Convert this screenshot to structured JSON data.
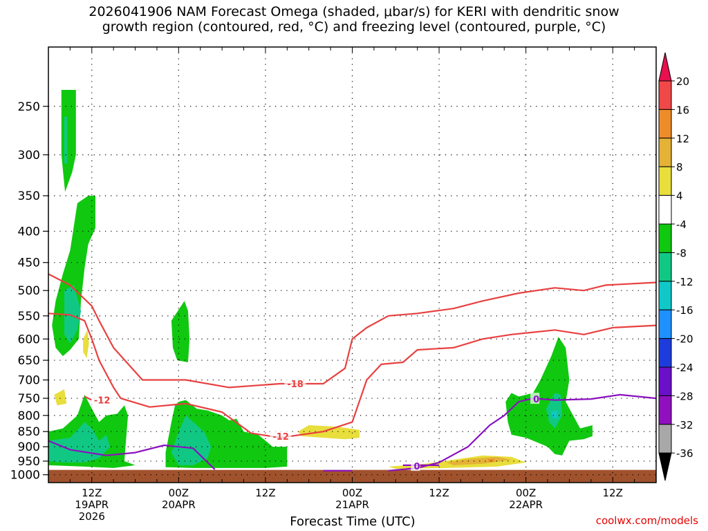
{
  "title_line1": "2026041906 NAM Forecast Omega (shaded, μbar/s) for KERI with dendritic snow",
  "title_line2": "growth region (contoured, red, °C) and freezing level (contoured, purple, °C)",
  "credit": "coolwx.com/models",
  "chart_data": {
    "type": "heatmap",
    "title": "2026041906 NAM Forecast Omega (shaded, μbar/s) for KERI with dendritic snow growth region (contoured, red, °C) and freezing level (contoured, purple, °C)",
    "xlabel": "Forecast Time (UTC)",
    "ylabel": "",
    "x_range_hours": [
      0,
      84
    ],
    "y_range_hpa": [
      1030,
      200
    ],
    "y_scale": "log",
    "y_ticks": [
      250,
      300,
      350,
      400,
      450,
      500,
      550,
      600,
      650,
      700,
      750,
      800,
      850,
      900,
      950,
      1000
    ],
    "x_ticks": [
      {
        "hour": 6,
        "label": "12Z",
        "label2": "19APR",
        "label3": "2026"
      },
      {
        "hour": 18,
        "label": "00Z",
        "label2": "20APR",
        "label3": ""
      },
      {
        "hour": 30,
        "label": "12Z",
        "label2": "",
        "label3": ""
      },
      {
        "hour": 42,
        "label": "00Z",
        "label2": "21APR",
        "label3": ""
      },
      {
        "hour": 54,
        "label": "12Z",
        "label2": "",
        "label3": ""
      },
      {
        "hour": 66,
        "label": "00Z",
        "label2": "22APR",
        "label3": ""
      },
      {
        "hour": 78,
        "label": "12Z",
        "label2": "",
        "label3": ""
      }
    ],
    "grid": true,
    "colorbar": {
      "labels": [
        "20",
        "16",
        "12",
        "8",
        "4",
        "-4",
        "-8",
        "-12",
        "-16",
        "-20",
        "-24",
        "-28",
        "-32",
        "-36"
      ],
      "colors": [
        "#e8104f",
        "#f04848",
        "#ee8c2a",
        "#e4b236",
        "#e8de3c",
        "#ffffff",
        "#10c810",
        "#10c884",
        "#10c8c8",
        "#1e90ff",
        "#1e3cdc",
        "#6a10c8",
        "#9010c0",
        "#a8a8a8",
        "#000000"
      ]
    },
    "contours": {
      "dendritic_minus12_upper": {
        "label": "-12",
        "color": "#e84040",
        "points": [
          [
            0,
            545
          ],
          [
            3,
            548
          ],
          [
            5,
            560
          ],
          [
            6,
            600
          ],
          [
            7,
            650
          ],
          [
            9,
            720
          ],
          [
            10,
            750
          ],
          [
            14,
            775
          ],
          [
            19,
            765
          ],
          [
            24,
            790
          ],
          [
            28,
            855
          ],
          [
            32,
            870
          ],
          [
            38,
            850
          ],
          [
            42,
            820
          ],
          [
            44,
            700
          ],
          [
            46,
            660
          ],
          [
            49,
            655
          ],
          [
            51,
            625
          ],
          [
            56,
            620
          ],
          [
            60,
            600
          ],
          [
            64,
            590
          ],
          [
            70,
            580
          ],
          [
            74,
            590
          ],
          [
            78,
            575
          ],
          [
            84,
            570
          ]
        ],
        "label_hour": 31,
        "label_hpa": 865
      },
      "dendritic_minus18": {
        "label": "-18",
        "color": "#e84040",
        "points": [
          [
            0,
            470
          ],
          [
            3,
            490
          ],
          [
            6,
            530
          ],
          [
            7,
            560
          ],
          [
            9,
            620
          ],
          [
            13,
            700
          ],
          [
            19,
            700
          ],
          [
            25,
            720
          ],
          [
            32,
            710
          ],
          [
            38,
            710
          ],
          [
            41,
            670
          ],
          [
            42,
            600
          ],
          [
            44,
            575
          ],
          [
            47,
            550
          ],
          [
            51,
            545
          ],
          [
            56,
            535
          ],
          [
            60,
            520
          ],
          [
            65,
            505
          ],
          [
            70,
            495
          ],
          [
            74,
            500
          ],
          [
            77,
            490
          ],
          [
            84,
            485
          ]
        ],
        "label_hour": 33,
        "label_hpa": 710
      },
      "dendritic_minus12_lower": {
        "label": "-12",
        "color": "#e84040",
        "points": [
          [
            5,
            745
          ],
          [
            6,
            755
          ]
        ],
        "label_hour": 6.3,
        "label_hpa": 755
      },
      "freezing_level": {
        "label": "0",
        "color": "#8a10c0",
        "points": [
          [
            0,
            880
          ],
          [
            3,
            910
          ],
          [
            8,
            930
          ],
          [
            12,
            920
          ],
          [
            16,
            895
          ],
          [
            20,
            905
          ],
          [
            23,
            980
          ]
        ],
        "label_hour": 0,
        "label_hpa": 0
      },
      "freezing_level_2": {
        "label": "0",
        "color": "#8a10c0",
        "points": [
          [
            38,
            985
          ],
          [
            42,
            985
          ]
        ],
        "label_hour": 0,
        "label_hpa": 0
      },
      "freezing_level_3": {
        "label": "0",
        "color": "#8a10c0",
        "points": [
          [
            47,
            985
          ],
          [
            51,
            975
          ],
          [
            54,
            955
          ],
          [
            58,
            900
          ],
          [
            61,
            830
          ],
          [
            63,
            800
          ],
          [
            65,
            760
          ],
          [
            67,
            750
          ],
          [
            70,
            755
          ],
          [
            75,
            752
          ],
          [
            79,
            740
          ],
          [
            84,
            750
          ]
        ],
        "label_hour": 67,
        "label_hpa": 752
      },
      "freezing_level_4": {
        "label": "0",
        "color": "#8a10c0",
        "points": [
          [
            49,
            965
          ],
          [
            54,
            965
          ]
        ],
        "label_hour": 50.5,
        "label_hpa": 968
      }
    }
  }
}
